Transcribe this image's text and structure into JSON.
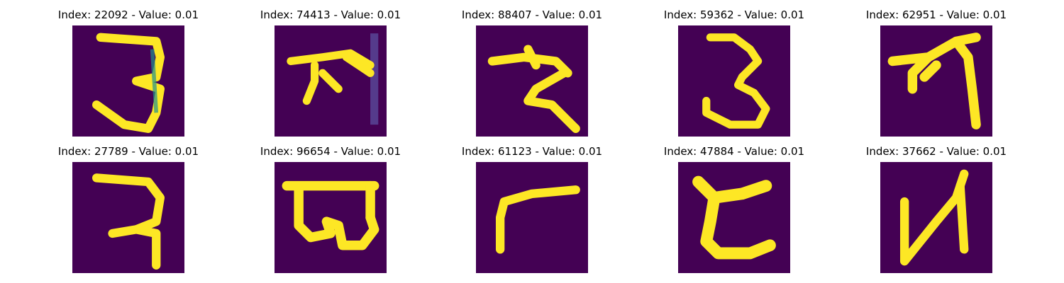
{
  "figure": {
    "colormap": "viridis",
    "background_color": "#440154",
    "stroke_color": "#fde725",
    "panels": [
      {
        "title": "Index: 22092 - Value: 0.01",
        "glyph": "glyph-3-like"
      },
      {
        "title": "Index: 74413 - Value: 0.01",
        "glyph": "glyph-ka-like"
      },
      {
        "title": "Index: 88407 - Value: 0.01",
        "glyph": "glyph-ra-like"
      },
      {
        "title": "Index: 59362 - Value: 0.01",
        "glyph": "glyph-3-like"
      },
      {
        "title": "Index: 62951 - Value: 0.01",
        "glyph": "glyph-ta-like"
      },
      {
        "title": "Index: 27789 - Value: 0.01",
        "glyph": "glyph-ra-like"
      },
      {
        "title": "Index: 96654 - Value: 0.01",
        "glyph": "glyph-la-like"
      },
      {
        "title": "Index: 61123 - Value: 0.01",
        "glyph": "glyph-corner"
      },
      {
        "title": "Index: 47884 - Value: 0.01",
        "glyph": "glyph-c-like"
      },
      {
        "title": "Index: 37662 - Value: 0.01",
        "glyph": "glyph-n-like"
      }
    ]
  }
}
